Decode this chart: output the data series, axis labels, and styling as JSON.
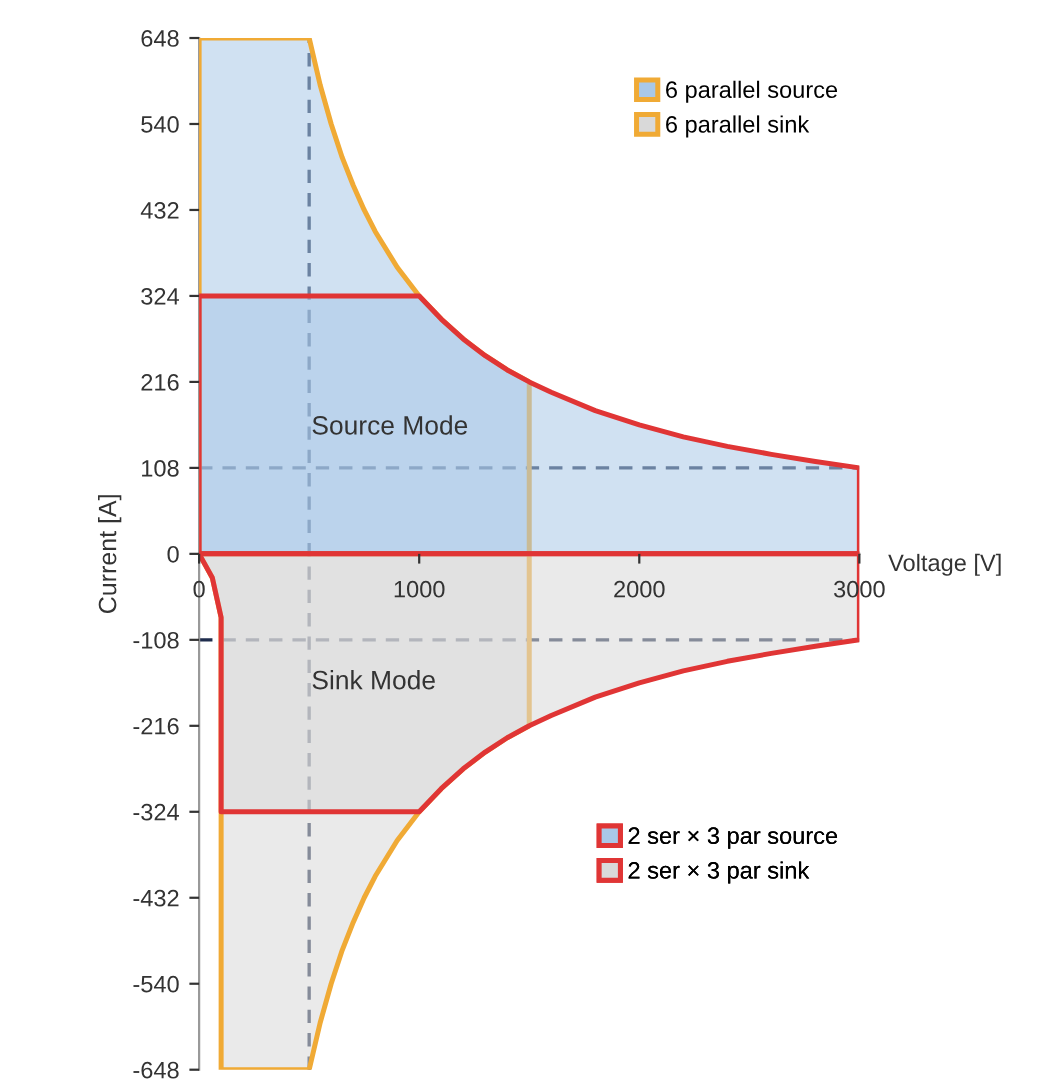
{
  "chart_data": {
    "type": "area",
    "xlabel": "Voltage [V]",
    "ylabel": "Current [A]",
    "series": [
      {
        "name": "6 parallel source",
        "color": "#f0aa35",
        "x": [
          0,
          0,
          500,
          550,
          600,
          650,
          700,
          750,
          800,
          900,
          1000,
          1100,
          1200,
          1300,
          1400,
          1500,
          1500
        ],
        "values": [
          0,
          648,
          648,
          589,
          540,
          498,
          463,
          432,
          405,
          360,
          324,
          295,
          270,
          249,
          231,
          216,
          0
        ]
      },
      {
        "name": "6 parallel sink",
        "color": "#f0aa35",
        "x": [
          0,
          60,
          100,
          100,
          500,
          550,
          600,
          650,
          700,
          750,
          800,
          900,
          1000,
          1100,
          1200,
          1300,
          1400,
          1500,
          1500
        ],
        "values": [
          0,
          -30,
          -80,
          -648,
          -648,
          -589,
          -540,
          -498,
          -463,
          -432,
          -405,
          -360,
          -324,
          -295,
          -270,
          -249,
          -231,
          -216,
          0
        ]
      },
      {
        "name": "2 ser × 3 par source",
        "color": "#e03535",
        "x": [
          0,
          0,
          1000,
          1100,
          1200,
          1300,
          1400,
          1500,
          1600,
          1800,
          2000,
          2200,
          2400,
          2600,
          2800,
          3000,
          3000
        ],
        "values": [
          0,
          324,
          324,
          295,
          270,
          249,
          231,
          216,
          203,
          180,
          162,
          147,
          135,
          125,
          116,
          108,
          0
        ]
      },
      {
        "name": "2 ser × 3 par sink",
        "color": "#e03535",
        "x": [
          0,
          60,
          100,
          100,
          1000,
          1100,
          1200,
          1300,
          1400,
          1500,
          1600,
          1800,
          2000,
          2200,
          2400,
          2600,
          2800,
          3000,
          3000
        ],
        "values": [
          0,
          -30,
          -80,
          -324,
          -324,
          -295,
          -270,
          -249,
          -231,
          -216,
          -203,
          -180,
          -162,
          -147,
          -135,
          -125,
          -116,
          -108,
          0
        ]
      }
    ],
    "xlim": [
      0,
      3000
    ],
    "xticks": [
      0,
      1000,
      2000,
      3000
    ],
    "ylim": [
      -648,
      648
    ],
    "yticks": [
      -648,
      -540,
      -432,
      -324,
      -216,
      -108,
      0,
      108,
      216,
      324,
      432,
      540,
      648
    ],
    "ref_lines": [
      {
        "axis": "x",
        "value": 500,
        "color": "#1f2d4d",
        "line_style": "dashed"
      },
      {
        "axis": "y",
        "value": 108,
        "color": "#1f2d4d",
        "line_style": "dashed"
      },
      {
        "axis": "y",
        "value": -108,
        "color": "#1f2d4d",
        "line_style": "dashed"
      }
    ],
    "annotations": [
      {
        "text": "Source Mode",
        "x": 510,
        "y": 150
      },
      {
        "text": "Sink Mode",
        "x": 510,
        "y": -170
      }
    ],
    "legend": "right",
    "grid": false
  }
}
